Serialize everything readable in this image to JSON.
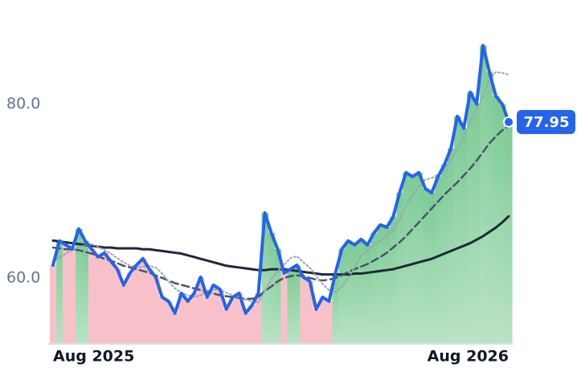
{
  "chart_data": {
    "type": "line",
    "categories": [
      "Aug 2025",
      null,
      null,
      null,
      null,
      null,
      null,
      null,
      null,
      null,
      null,
      null,
      null,
      null,
      null,
      null,
      null,
      null,
      null,
      null,
      null,
      null,
      null,
      null,
      null,
      null,
      null,
      null,
      null,
      null,
      null,
      null,
      null,
      null,
      null,
      null,
      null,
      null,
      null,
      null,
      null,
      null,
      null,
      null,
      null,
      null,
      null,
      null,
      null,
      null,
      null,
      null,
      null,
      null,
      null,
      null,
      null,
      null,
      null,
      null,
      null,
      null,
      null,
      null,
      null,
      null,
      null,
      null,
      null,
      null,
      null,
      "Aug 2026"
    ],
    "series": [
      {
        "color": "#2563eb",
        "style": "solid",
        "width": 4,
        "values": [
          61.48,
          64.26,
          63.8,
          63.33,
          65.65,
          64.26,
          63.33,
          62.41,
          62.87,
          61.94,
          61.02,
          59.17,
          60.56,
          61.48,
          62.22,
          61.02,
          60.09,
          57.78,
          57.31,
          55.93,
          58.24,
          57.31,
          58.24,
          60.09,
          57.78,
          59.17,
          58.7,
          56.39,
          57.78,
          58.24,
          55.93,
          56.85,
          58.24,
          67.5,
          65.19,
          63.33,
          60.56,
          61.02,
          61.48,
          60.09,
          59.63,
          56.39,
          57.78,
          57.31,
          60.56,
          63.33,
          64.26,
          63.8,
          64.44,
          63.8,
          65.19,
          66.11,
          65.83,
          67.04,
          69.81,
          72.13,
          71.67,
          72.13,
          70.28,
          69.81,
          71.67,
          73.06,
          74.91,
          78.61,
          77.22,
          81.39,
          80.0,
          86.76,
          83.7,
          80.93,
          80.0,
          77.95
        ]
      },
      {
        "color": "#9ca3af",
        "style": "dotted",
        "width": 2,
        "values": [
          62.0,
          62.3,
          62.8,
          63.2,
          63.5,
          63.8,
          63.9,
          63.6,
          63.2,
          62.8,
          62.3,
          61.8,
          61.4,
          61.2,
          61.3,
          61.4,
          61.2,
          60.5,
          59.6,
          58.8,
          58.3,
          58.0,
          57.8,
          58.0,
          58.5,
          58.7,
          58.6,
          58.3,
          58.0,
          57.8,
          57.5,
          57.3,
          57.2,
          58.5,
          59.8,
          60.8,
          61.5,
          62.3,
          62.5,
          61.8,
          61.2,
          60.2,
          59.3,
          58.6,
          58.4,
          59.0,
          60.0,
          61.2,
          62.5,
          63.2,
          63.8,
          64.3,
          64.8,
          65.5,
          66.8,
          68.3,
          69.5,
          70.5,
          71.3,
          71.5,
          71.9,
          72.6,
          73.6,
          74.9,
          76.2,
          78.0,
          79.3,
          81.0,
          82.8,
          83.7,
          83.6,
          83.4
        ]
      },
      {
        "color": "#475569",
        "style": "dashed",
        "width": 2.5,
        "values": [
          63.5,
          63.4,
          63.3,
          63.3,
          63.2,
          63.0,
          62.8,
          62.5,
          62.2,
          62.0,
          61.7,
          61.4,
          61.2,
          61.0,
          60.8,
          60.6,
          60.3,
          60.0,
          59.7,
          59.4,
          59.2,
          59.0,
          58.8,
          58.6,
          58.4,
          58.2,
          58.0,
          57.9,
          57.8,
          57.7,
          57.6,
          57.6,
          57.8,
          58.5,
          59.0,
          59.6,
          60.0,
          60.2,
          60.3,
          60.2,
          60.0,
          59.8,
          59.7,
          59.8,
          60.0,
          60.3,
          60.7,
          61.0,
          61.3,
          61.6,
          62.0,
          62.4,
          62.9,
          63.5,
          64.1,
          64.8,
          65.6,
          66.4,
          67.2,
          68.0,
          68.8,
          69.6,
          70.3,
          71.0,
          71.8,
          72.6,
          73.5,
          74.5,
          75.5,
          76.3,
          77.0,
          77.5
        ]
      },
      {
        "color": "#1e293b",
        "style": "solid",
        "width": 3,
        "values": [
          64.3,
          64.2,
          64.1,
          64.0,
          63.9,
          63.8,
          63.7,
          63.6,
          63.5,
          63.5,
          63.4,
          63.4,
          63.4,
          63.4,
          63.3,
          63.3,
          63.2,
          63.1,
          63.0,
          62.9,
          62.8,
          62.6,
          62.4,
          62.2,
          62.0,
          61.8,
          61.6,
          61.4,
          61.3,
          61.2,
          61.1,
          61.0,
          60.9,
          60.9,
          61.0,
          61.0,
          61.0,
          60.9,
          60.8,
          60.7,
          60.6,
          60.5,
          60.4,
          60.4,
          60.4,
          60.4,
          60.4,
          60.5,
          60.5,
          60.6,
          60.7,
          60.8,
          60.9,
          61.0,
          61.2,
          61.4,
          61.6,
          61.8,
          62.0,
          62.2,
          62.5,
          62.8,
          63.1,
          63.4,
          63.7,
          64.0,
          64.4,
          64.8,
          65.3,
          65.8,
          66.4,
          67.1
        ]
      }
    ],
    "up_color": "#8fd1a4",
    "down_color": "#f8c1ca",
    "ylim": [
      52.5,
      92
    ],
    "yticks": [
      {
        "value": 60,
        "label": "60.0"
      },
      {
        "value": 80,
        "label": "80.0"
      }
    ]
  }
}
